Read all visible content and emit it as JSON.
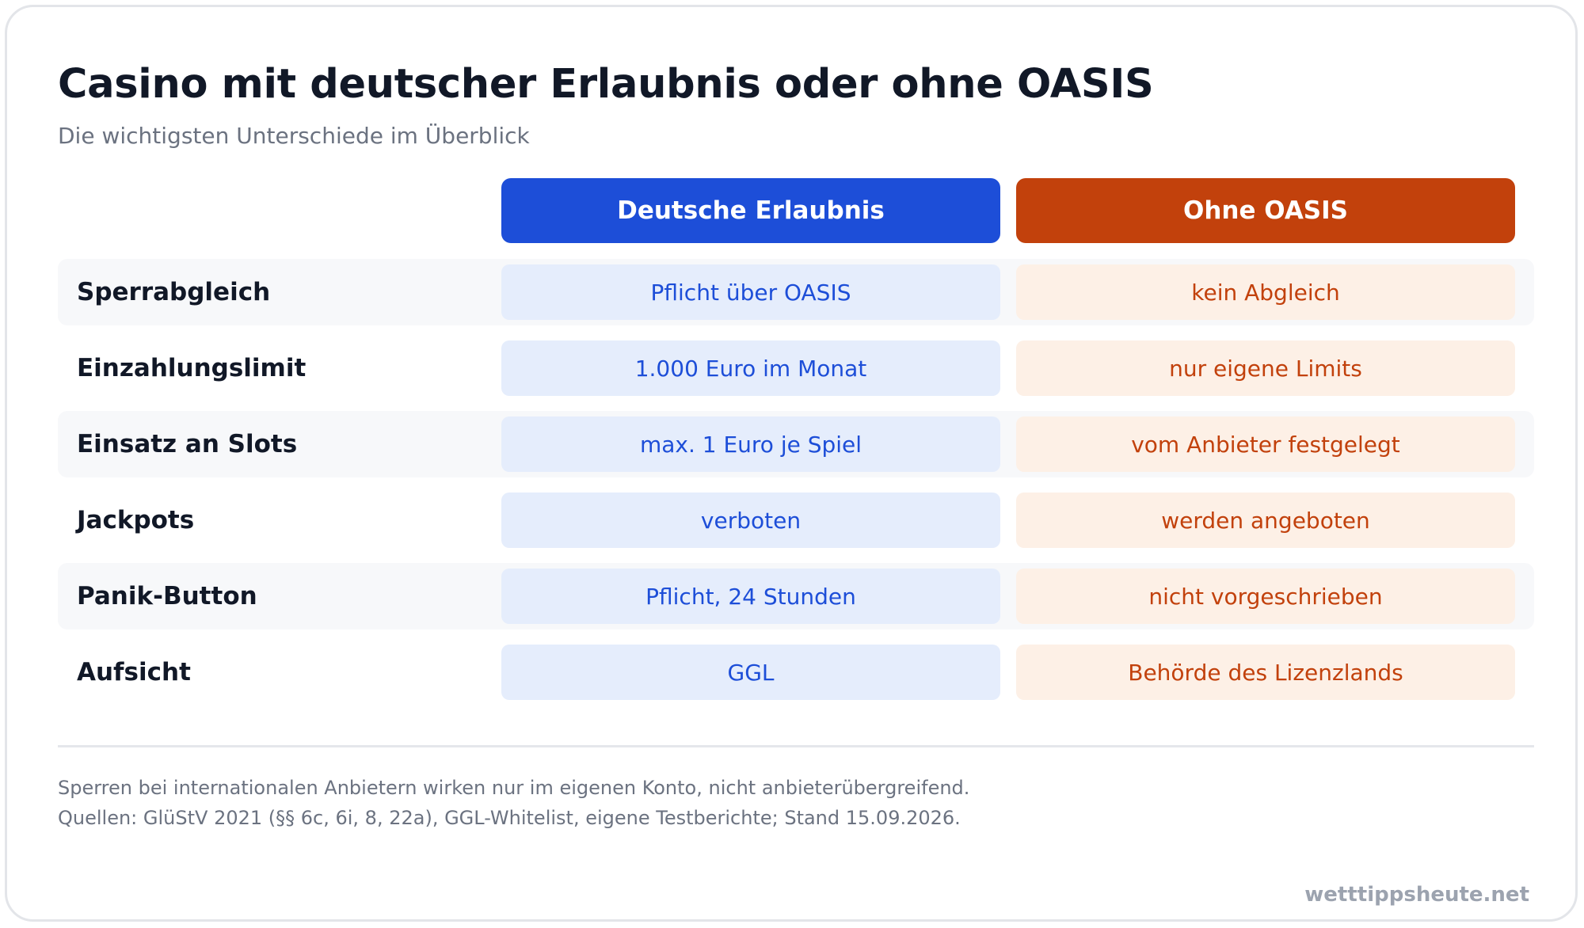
{
  "header": {
    "title": "Casino mit deutscher Erlaubnis oder ohne OASIS",
    "subtitle": "Die wichtigsten Unterschiede im Überblick"
  },
  "table": {
    "columns": [
      "Deutsche Erlaubnis",
      "Ohne OASIS"
    ],
    "rows": [
      {
        "label": "Sperrabgleich",
        "de": "Pflicht über OASIS",
        "oasis": "kein Abgleich"
      },
      {
        "label": "Einzahlungslimit",
        "de": "1.000 Euro im Monat",
        "oasis": "nur eigene Limits"
      },
      {
        "label": "Einsatz an Slots",
        "de": "max. 1 Euro je Spiel",
        "oasis": "vom Anbieter festgelegt"
      },
      {
        "label": "Jackpots",
        "de": "verboten",
        "oasis": "werden angeboten"
      },
      {
        "label": "Panik-Button",
        "de": "Pflicht, 24 Stunden",
        "oasis": "nicht vorgeschrieben"
      },
      {
        "label": "Aufsicht",
        "de": "GGL",
        "oasis": "Behörde des Lizenzlands"
      }
    ]
  },
  "footer": {
    "note": "Sperren bei internationalen Anbietern wirken nur im eigenen Konto, nicht anbieterübergreifend.",
    "sources": "Quellen: GlüStV 2021 (§§ 6c, 6i, 8, 22a), GGL-Whitelist, eigene Testberichte; Stand 15.09.2026.",
    "brand": "wetttippsheute.net"
  },
  "colors": {
    "de_accent": "#1d4ed8",
    "de_cell_bg": "#e5edfc",
    "oasis_accent": "#c2410c",
    "oasis_cell_bg": "#fdf0e6"
  }
}
